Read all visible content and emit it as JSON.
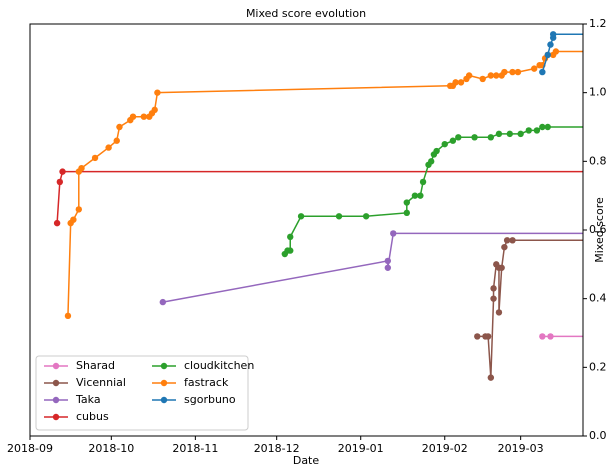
{
  "chart_data": {
    "type": "line",
    "title": "Mixed score evolution",
    "xlabel": "Date",
    "ylabel": "Mixed score",
    "xlim": [
      "2018-09-01",
      "2019-03-24"
    ],
    "xticks": [
      {
        "value": "2018-09-01",
        "label": "2018-09"
      },
      {
        "value": "2018-10-01",
        "label": "2018-10"
      },
      {
        "value": "2018-11-01",
        "label": "2018-11"
      },
      {
        "value": "2018-12-01",
        "label": "2018-12"
      },
      {
        "value": "2019-01-01",
        "label": "2019-01"
      },
      {
        "value": "2019-02-01",
        "label": "2019-02"
      },
      {
        "value": "2019-03-01",
        "label": "2019-03"
      }
    ],
    "ylim": [
      0,
      1.2
    ],
    "yticks": [
      {
        "value": 0,
        "label": "0.0"
      },
      0.2,
      0.4,
      0.6,
      0.8,
      {
        "value": 1,
        "label": "1.0"
      },
      1.2
    ],
    "legend": "lower left",
    "series": [
      {
        "name": "Sharad",
        "color": "#e377c2",
        "x": [
          "2019-03-09",
          "2019-03-12"
        ],
        "values": [
          0.29,
          0.29
        ]
      },
      {
        "name": "Vicennial",
        "color": "#8c564b",
        "x": [
          "2019-02-13",
          "2019-02-16",
          "2019-02-17",
          "2019-02-18",
          "2019-02-19",
          "2019-02-19",
          "2019-02-20",
          "2019-02-21",
          "2019-02-21",
          "2019-02-22",
          "2019-02-23",
          "2019-02-24",
          "2019-02-26"
        ],
        "values": [
          0.29,
          0.29,
          0.29,
          0.17,
          0.4,
          0.43,
          0.5,
          0.49,
          0.36,
          0.49,
          0.55,
          0.57,
          0.57
        ]
      },
      {
        "name": "Taka",
        "color": "#9467bd",
        "x": [
          "2018-10-20",
          "2019-01-11",
          "2019-01-11",
          "2019-01-13"
        ],
        "values": [
          0.39,
          0.51,
          0.49,
          0.59
        ]
      },
      {
        "name": "cubus",
        "color": "#d62728",
        "x": [
          "2018-09-11",
          "2018-09-12",
          "2018-09-13"
        ],
        "values": [
          0.62,
          0.74,
          0.77
        ]
      },
      {
        "name": "cloudkitchen",
        "color": "#2ca02c",
        "x": [
          "2018-12-04",
          "2018-12-05",
          "2018-12-06",
          "2018-12-06",
          "2018-12-10",
          "2018-12-24",
          "2019-01-03",
          "2019-01-18",
          "2019-01-18",
          "2019-01-21",
          "2019-01-23",
          "2019-01-24",
          "2019-01-26",
          "2019-01-27",
          "2019-01-28",
          "2019-01-29",
          "2019-02-01",
          "2019-02-04",
          "2019-02-06",
          "2019-02-12",
          "2019-02-18",
          "2019-02-21",
          "2019-02-25",
          "2019-03-01",
          "2019-03-04",
          "2019-03-07",
          "2019-03-09",
          "2019-03-11"
        ],
        "values": [
          0.53,
          0.54,
          0.54,
          0.58,
          0.64,
          0.64,
          0.64,
          0.65,
          0.68,
          0.7,
          0.7,
          0.74,
          0.79,
          0.8,
          0.82,
          0.83,
          0.85,
          0.86,
          0.87,
          0.87,
          0.87,
          0.88,
          0.88,
          0.88,
          0.89,
          0.89,
          0.9,
          0.9
        ]
      },
      {
        "name": "fastrack",
        "color": "#ff7f0e",
        "x": [
          "2018-09-15",
          "2018-09-16",
          "2018-09-17",
          "2018-09-19",
          "2018-09-19",
          "2018-09-20",
          "2018-09-25",
          "2018-09-30",
          "2018-10-03",
          "2018-10-04",
          "2018-10-08",
          "2018-10-09",
          "2018-10-13",
          "2018-10-15",
          "2018-10-16",
          "2018-10-17",
          "2018-10-18",
          "2019-02-03",
          "2019-02-04",
          "2019-02-05",
          "2019-02-07",
          "2019-02-09",
          "2019-02-10",
          "2019-02-15",
          "2019-02-18",
          "2019-02-20",
          "2019-02-22",
          "2019-02-23",
          "2019-02-26",
          "2019-02-28",
          "2019-03-06",
          "2019-03-08",
          "2019-03-09",
          "2019-03-10",
          "2019-03-11",
          "2019-03-13",
          "2019-03-14"
        ],
        "values": [
          0.35,
          0.62,
          0.63,
          0.66,
          0.77,
          0.78,
          0.81,
          0.84,
          0.86,
          0.9,
          0.92,
          0.93,
          0.93,
          0.93,
          0.94,
          0.95,
          1.0,
          1.02,
          1.02,
          1.03,
          1.03,
          1.04,
          1.05,
          1.04,
          1.05,
          1.05,
          1.05,
          1.06,
          1.06,
          1.06,
          1.07,
          1.08,
          1.08,
          1.1,
          1.11,
          1.11,
          1.12
        ]
      },
      {
        "name": "sgorbuno",
        "color": "#1f77b4",
        "x": [
          "2019-03-09",
          "2019-03-11",
          "2019-03-12",
          "2019-03-13",
          "2019-03-13"
        ],
        "values": [
          1.06,
          1.11,
          1.14,
          1.16,
          1.17
        ]
      }
    ]
  }
}
